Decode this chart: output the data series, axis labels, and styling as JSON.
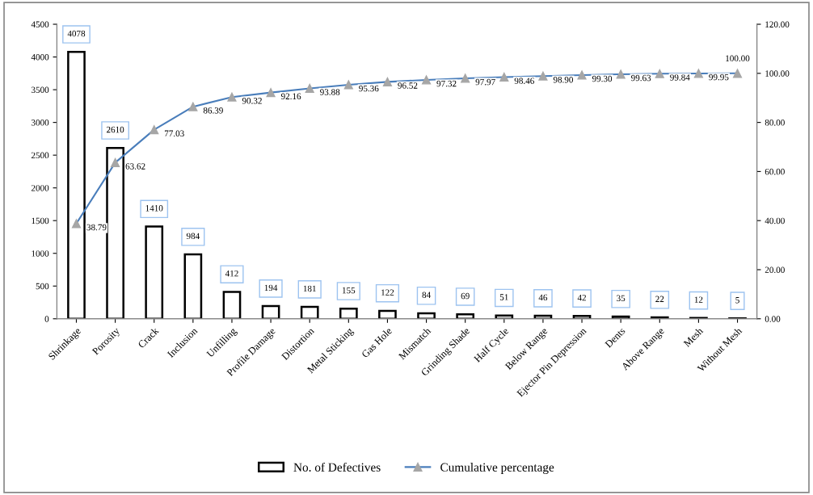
{
  "chart_data": {
    "type": "bar",
    "categories": [
      "Shrinkage",
      "Porosity",
      "Crack",
      "Inclusion",
      "Unfilling",
      "Profile Damage",
      "Distortion",
      "Metal Sticking",
      "Gas Hole",
      "Mismatch",
      "Grinding Shade",
      "Half Cycle",
      "Below Range",
      "Ejector Pin Depression",
      "Dents",
      "Above Range",
      "Mesh",
      "Without Mesh"
    ],
    "series": [
      {
        "name": "No. of Defectives",
        "color": "#ffffff",
        "values": [
          4078,
          2610,
          1410,
          984,
          412,
          194,
          181,
          155,
          122,
          84,
          69,
          51,
          46,
          42,
          35,
          22,
          12,
          5
        ]
      },
      {
        "name": "Cumulative percentage",
        "type": "line",
        "axis": "y2",
        "color": "#4a7ebb",
        "marker": "triangle",
        "values": [
          38.79,
          63.62,
          77.03,
          86.39,
          90.32,
          92.16,
          93.88,
          95.36,
          96.52,
          97.32,
          97.97,
          98.46,
          98.9,
          99.3,
          99.63,
          99.84,
          99.95,
          100.0
        ],
        "value_labels": [
          "38.79",
          "63.62",
          "77.03",
          "86.39",
          "90.32",
          "92.16",
          "93.88",
          "95.36",
          "96.52",
          "97.32",
          "97.97",
          "98.46",
          "98.90",
          "99.30",
          "99.63",
          "99.84",
          "99.95",
          "100.00"
        ]
      }
    ],
    "data_labels": true,
    "ylim": [
      0,
      4500
    ],
    "yticks": [
      0,
      500,
      1000,
      1500,
      2000,
      2500,
      3000,
      3500,
      4000,
      4500
    ],
    "y2lim": [
      0,
      120
    ],
    "y2ticks": [
      {
        "value": 0,
        "label": "0.00"
      },
      {
        "value": 20,
        "label": "20.00"
      },
      {
        "value": 40,
        "label": "40.00"
      },
      {
        "value": 60,
        "label": "60.00"
      },
      {
        "value": 80,
        "label": "80.00"
      },
      {
        "value": 100,
        "label": "100.00"
      },
      {
        "value": 120,
        "label": "120.00"
      }
    ],
    "grid": false,
    "legend": "bottom"
  }
}
